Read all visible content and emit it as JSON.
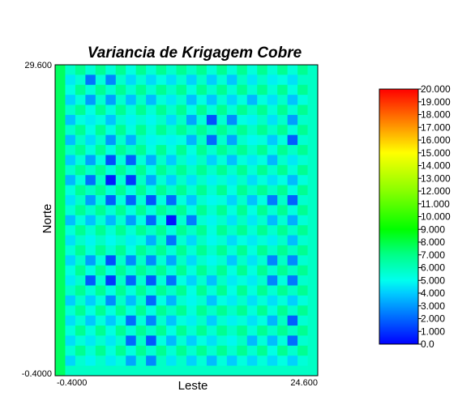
{
  "chart_data": {
    "type": "heatmap",
    "title": "Variancia de Krigagem Cobre",
    "xlabel": "Leste",
    "ylabel": "Norte",
    "xlim": [
      -0.4,
      24.6
    ],
    "ylim": [
      -0.4,
      29.6
    ],
    "x_tick_labels": [
      "-0.4000",
      "24.600"
    ],
    "y_tick_labels": [
      "29.600",
      "-0.4000"
    ],
    "grid_cols": 26,
    "grid_rows": 31,
    "colorbar": {
      "min": 0,
      "max": 20,
      "labels": [
        "20.000",
        "19.000",
        "18.000",
        "17.000",
        "16.000",
        "15.000",
        "14.000",
        "13.000",
        "12.000",
        "11.000",
        "10.000",
        "9.000",
        "8.000",
        "7.000",
        "6.000",
        "5.000",
        "4.000",
        "3.000",
        "2.000",
        "1.000",
        "0.0"
      ],
      "stops": [
        {
          "value": 0,
          "color": "#0000ff"
        },
        {
          "value": 2,
          "color": "#0066ff"
        },
        {
          "value": 4,
          "color": "#00ccff"
        },
        {
          "value": 5,
          "color": "#00ffee"
        },
        {
          "value": 7,
          "color": "#00ff88"
        },
        {
          "value": 9,
          "color": "#00ff00"
        },
        {
          "value": 12,
          "color": "#88ff00"
        },
        {
          "value": 15,
          "color": "#ffff00"
        },
        {
          "value": 17,
          "color": "#ff9900"
        },
        {
          "value": 20,
          "color": "#ff0000"
        }
      ]
    },
    "blobs": [
      {
        "col": 4,
        "row": 1.5,
        "radius": 2.5,
        "low": 1.8
      },
      {
        "col": 15,
        "row": 6,
        "radius": 2.8,
        "low": 1.5
      },
      {
        "col": 23,
        "row": 6.5,
        "radius": 2.2,
        "low": 1.8
      },
      {
        "col": 5.5,
        "row": 11,
        "radius": 4.5,
        "low": 1.2
      },
      {
        "col": 10.5,
        "row": 15,
        "radius": 3.2,
        "low": 1.2
      },
      {
        "col": 22,
        "row": 13.5,
        "radius": 2.2,
        "low": 1.5
      },
      {
        "col": 4.5,
        "row": 20.5,
        "radius": 3.5,
        "low": 1.5
      },
      {
        "col": 9.5,
        "row": 21.5,
        "radius": 3,
        "low": 1.5
      },
      {
        "col": 8,
        "row": 26.5,
        "radius": 3,
        "low": 1.5
      },
      {
        "col": 22,
        "row": 20,
        "radius": 2.5,
        "low": 1.8
      },
      {
        "col": 23,
        "row": 26,
        "radius": 2.5,
        "low": 1.8
      }
    ]
  }
}
